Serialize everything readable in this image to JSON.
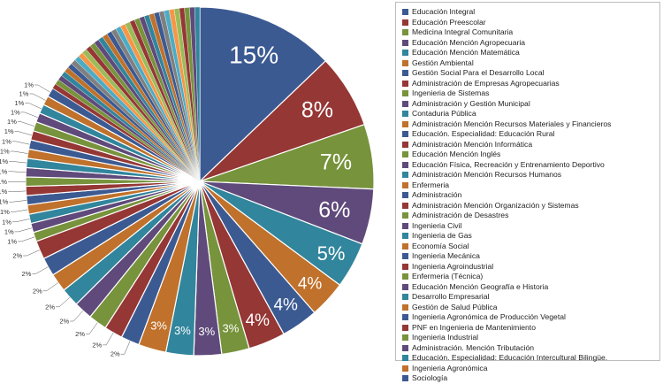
{
  "chart_data": {
    "type": "pie",
    "legend_position": "right",
    "series": [
      {
        "name": "Educación Integral",
        "value": 15,
        "label": "15%",
        "color": "#3c5a92"
      },
      {
        "name": "Educación Preescolar",
        "value": 8,
        "label": "8%",
        "color": "#953735"
      },
      {
        "name": "Medicina Integral Comunitaria",
        "value": 7,
        "label": "7%",
        "color": "#77933c"
      },
      {
        "name": "Educación Mención Agropecuaria",
        "value": 6,
        "label": "6%",
        "color": "#5f4a7b"
      },
      {
        "name": "Educación Mención Matemática",
        "value": 5,
        "label": "5%",
        "color": "#31859c"
      },
      {
        "name": "Gestión Ambiental",
        "value": 4,
        "label": "4%",
        "color": "#c0712b"
      },
      {
        "name": "Gestión Social Para el Desarrollo Local",
        "value": 4,
        "label": "4%",
        "color": "#3c5a92"
      },
      {
        "name": "Administración de Empresas Agropecuarias",
        "value": 4,
        "label": "4%",
        "color": "#953735"
      },
      {
        "name": "Ingenieria de Sistemas",
        "value": 3,
        "label": "3%",
        "color": "#77933c"
      },
      {
        "name": "Administración y Gestión Municipal",
        "value": 3,
        "label": "3%",
        "color": "#5f4a7b"
      },
      {
        "name": "Contaduria Pública",
        "value": 3,
        "label": "3%",
        "color": "#31859c"
      },
      {
        "name": "Administración Mención Recursos Materiales y Financieros",
        "value": 3,
        "label": "3%",
        "color": "#c0712b"
      },
      {
        "name": "Educación. Especialidad: Educación Rural",
        "value": 2,
        "label": "2%",
        "color": "#3c5a92"
      },
      {
        "name": "Administración Mención Informática",
        "value": 2,
        "label": "2%",
        "color": "#953735"
      },
      {
        "name": "Educación Mención Inglés",
        "value": 2,
        "label": "2%",
        "color": "#77933c"
      },
      {
        "name": "Educación Física, Recreación y Entrenamiento Deportivo",
        "value": 2,
        "label": "2%",
        "color": "#5f4a7b"
      },
      {
        "name": "Administración Mención Recursos Humanos",
        "value": 2,
        "label": "2%",
        "color": "#31859c"
      },
      {
        "name": "Enfermeria",
        "value": 2,
        "label": "2%",
        "color": "#c0712b"
      },
      {
        "name": "Administración",
        "value": 2,
        "label": "2%",
        "color": "#3c5a92"
      },
      {
        "name": "Administración Mención Organización y Sistemas",
        "value": 2,
        "label": "2%",
        "color": "#953735"
      },
      {
        "name": "Administración de Desastres",
        "value": 1,
        "label": "1%",
        "color": "#77933c"
      },
      {
        "name": "Ingenieria Civil",
        "value": 1,
        "label": "1%",
        "color": "#5f4a7b"
      },
      {
        "name": "Ingenieria de Gas",
        "value": 1,
        "label": "1%",
        "color": "#31859c"
      },
      {
        "name": "Economía Social",
        "value": 1,
        "label": "1%",
        "color": "#c0712b"
      },
      {
        "name": "Ingenieria Mecánica",
        "value": 1,
        "label": "1%",
        "color": "#3c5a92"
      },
      {
        "name": "Ingenieria Agroindustrial",
        "value": 1,
        "label": "1%",
        "color": "#953735"
      },
      {
        "name": "Enfermeria (Técnica)",
        "value": 1,
        "label": "1%",
        "color": "#77933c"
      },
      {
        "name": "Educación Mención Geografía e Historia",
        "value": 1,
        "label": "1%",
        "color": "#5f4a7b"
      },
      {
        "name": "Desarrollo Empresarial",
        "value": 1,
        "label": "1%",
        "color": "#31859c"
      },
      {
        "name": "Gestión de Salud Pública",
        "value": 1,
        "label": "1%",
        "color": "#c0712b"
      },
      {
        "name": "Ingenieria Agronómica de Producción Vegetal",
        "value": 1,
        "label": "1%",
        "color": "#3c5a92"
      },
      {
        "name": "PNF en Ingenieria de Mantenimiento",
        "value": 1,
        "label": "1%",
        "color": "#953735"
      },
      {
        "name": "Ingenieria Industrial",
        "value": 1,
        "label": "1%",
        "color": "#77933c"
      },
      {
        "name": "Administración. Mención Tributación",
        "value": 1,
        "label": "1%",
        "color": "#5f4a7b"
      },
      {
        "name": "Educación. Especialidad: Educación Intercultural Bilingüe.",
        "value": 1,
        "label": "1%",
        "color": "#31859c"
      },
      {
        "name": "Ingenieria Agronómica",
        "value": 1,
        "label": "1%",
        "color": "#c0712b"
      },
      {
        "name": "Sociología",
        "value": 1,
        "label": "1%",
        "color": "#3c5a92"
      }
    ],
    "extra_slices": {
      "count": 34,
      "value": 0.55,
      "colors": [
        "#953735",
        "#77933c",
        "#5f4a7b",
        "#31859c",
        "#c0712b",
        "#3c5a92",
        "#7f7f7f",
        "#4bacc6",
        "#f79646",
        "#9bbb59"
      ]
    }
  }
}
